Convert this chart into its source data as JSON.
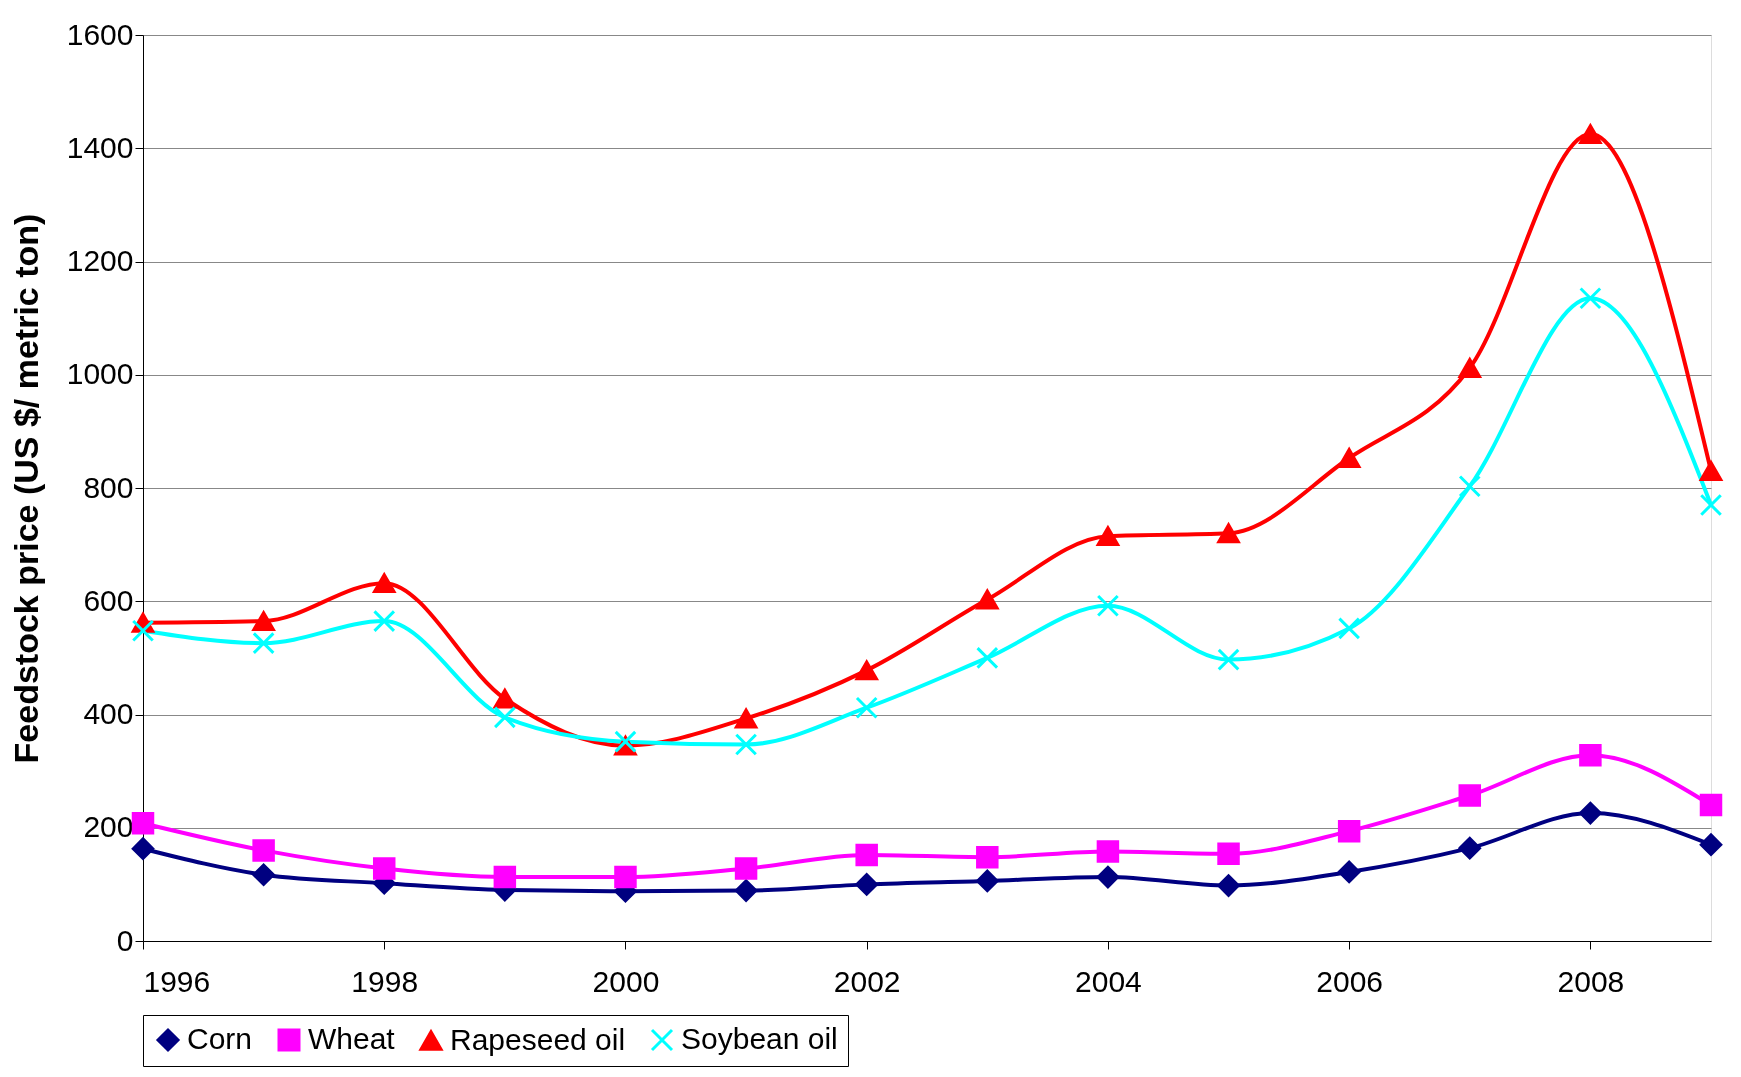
{
  "chart_data": {
    "type": "line",
    "ylabel": "Feedstock price (US $/ metric ton)",
    "x": [
      1996,
      1997,
      1998,
      1999,
      2000,
      2001,
      2002,
      2003,
      2004,
      2005,
      2006,
      2007,
      2008,
      2009
    ],
    "xlim": [
      1996,
      2009
    ],
    "xticks": [
      1996,
      1998,
      2000,
      2002,
      2004,
      2006,
      2008
    ],
    "ylim": [
      0,
      1600
    ],
    "yticks": [
      0,
      200,
      400,
      600,
      800,
      1000,
      1200,
      1400,
      1600
    ],
    "grid": "y",
    "legend": "bottom",
    "line_style": "solid",
    "series": [
      {
        "name": "Corn",
        "color": "#000080",
        "marker": "diamond",
        "values": [
          163,
          117,
          102,
          90,
          88,
          89,
          100,
          106,
          113,
          98,
          122,
          164,
          226,
          170
        ]
      },
      {
        "name": "Wheat",
        "color": "#ff00ff",
        "marker": "square",
        "values": [
          208,
          160,
          128,
          113,
          113,
          128,
          152,
          148,
          158,
          154,
          194,
          257,
          328,
          240
        ]
      },
      {
        "name": "Rapeseed oil",
        "color": "#ff0000",
        "marker": "triangle",
        "values": [
          562,
          565,
          632,
          428,
          345,
          393,
          478,
          603,
          715,
          720,
          853,
          1012,
          1425,
          830
        ]
      },
      {
        "name": "Soybean oil",
        "color": "#00ffff",
        "marker": "cross",
        "values": [
          548,
          526,
          565,
          395,
          352,
          347,
          412,
          500,
          592,
          497,
          552,
          803,
          1135,
          770
        ]
      }
    ]
  }
}
